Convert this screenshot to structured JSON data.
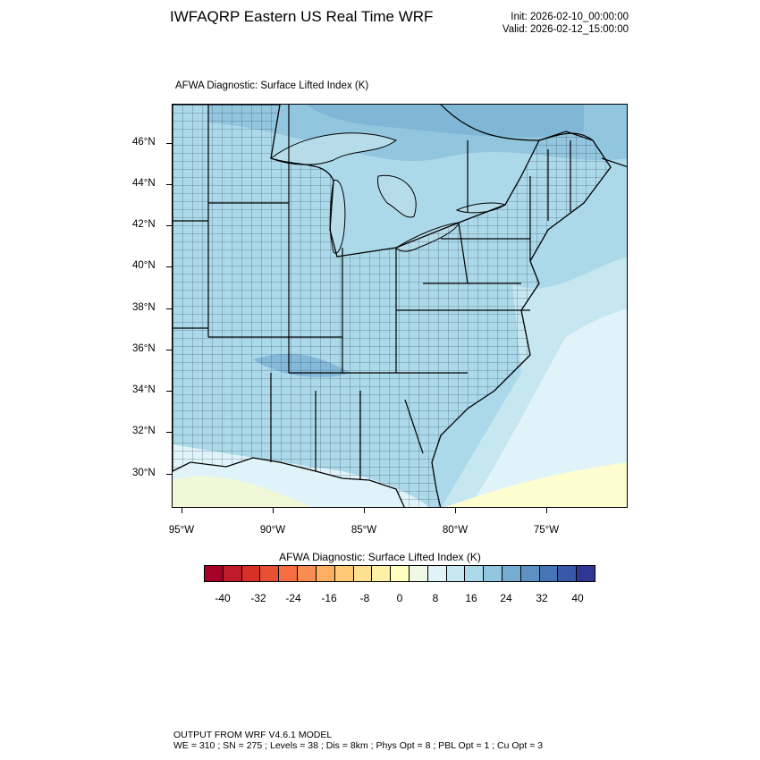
{
  "header": {
    "title": "IWFAQRP Eastern US Real Time WRF",
    "init": "Init: 2026-02-10_00:00:00",
    "valid": "Valid: 2026-02-12_15:00:00"
  },
  "plot": {
    "title": "AFWA Diagnostic: Surface Lifted Index   (K)",
    "lat_labels": [
      "46°N",
      "44°N",
      "42°N",
      "40°N",
      "38°N",
      "36°N",
      "34°N",
      "32°N",
      "30°N"
    ],
    "lon_labels": [
      "95°W",
      "90°W",
      "85°W",
      "80°W",
      "75°W"
    ]
  },
  "colorbar": {
    "title": "AFWA Diagnostic: Surface Lifted Index  (K)",
    "labels": [
      "-40",
      "-32",
      "-24",
      "-16",
      "-8",
      "0",
      "8",
      "16",
      "24",
      "32",
      "40"
    ],
    "colors": [
      "#a50026",
      "#c11b2b",
      "#d73027",
      "#e65035",
      "#f46d43",
      "#f88d52",
      "#fdae61",
      "#fec877",
      "#fee090",
      "#fef0a7",
      "#ffffbf",
      "#eef8e3",
      "#e0f3f8",
      "#c6e6f0",
      "#abd9e9",
      "#92c5de",
      "#74add1",
      "#5e91c3",
      "#4575b4",
      "#3a58a8",
      "#313695"
    ]
  },
  "footer": {
    "line1": "OUTPUT FROM WRF V4.6.1 MODEL",
    "line2": "WE = 310 ; SN = 275 ; Levels = 38 ; Dis = 8km ; Phys Opt = 8 ; PBL Opt = 1 ; Cu Opt = 3"
  }
}
